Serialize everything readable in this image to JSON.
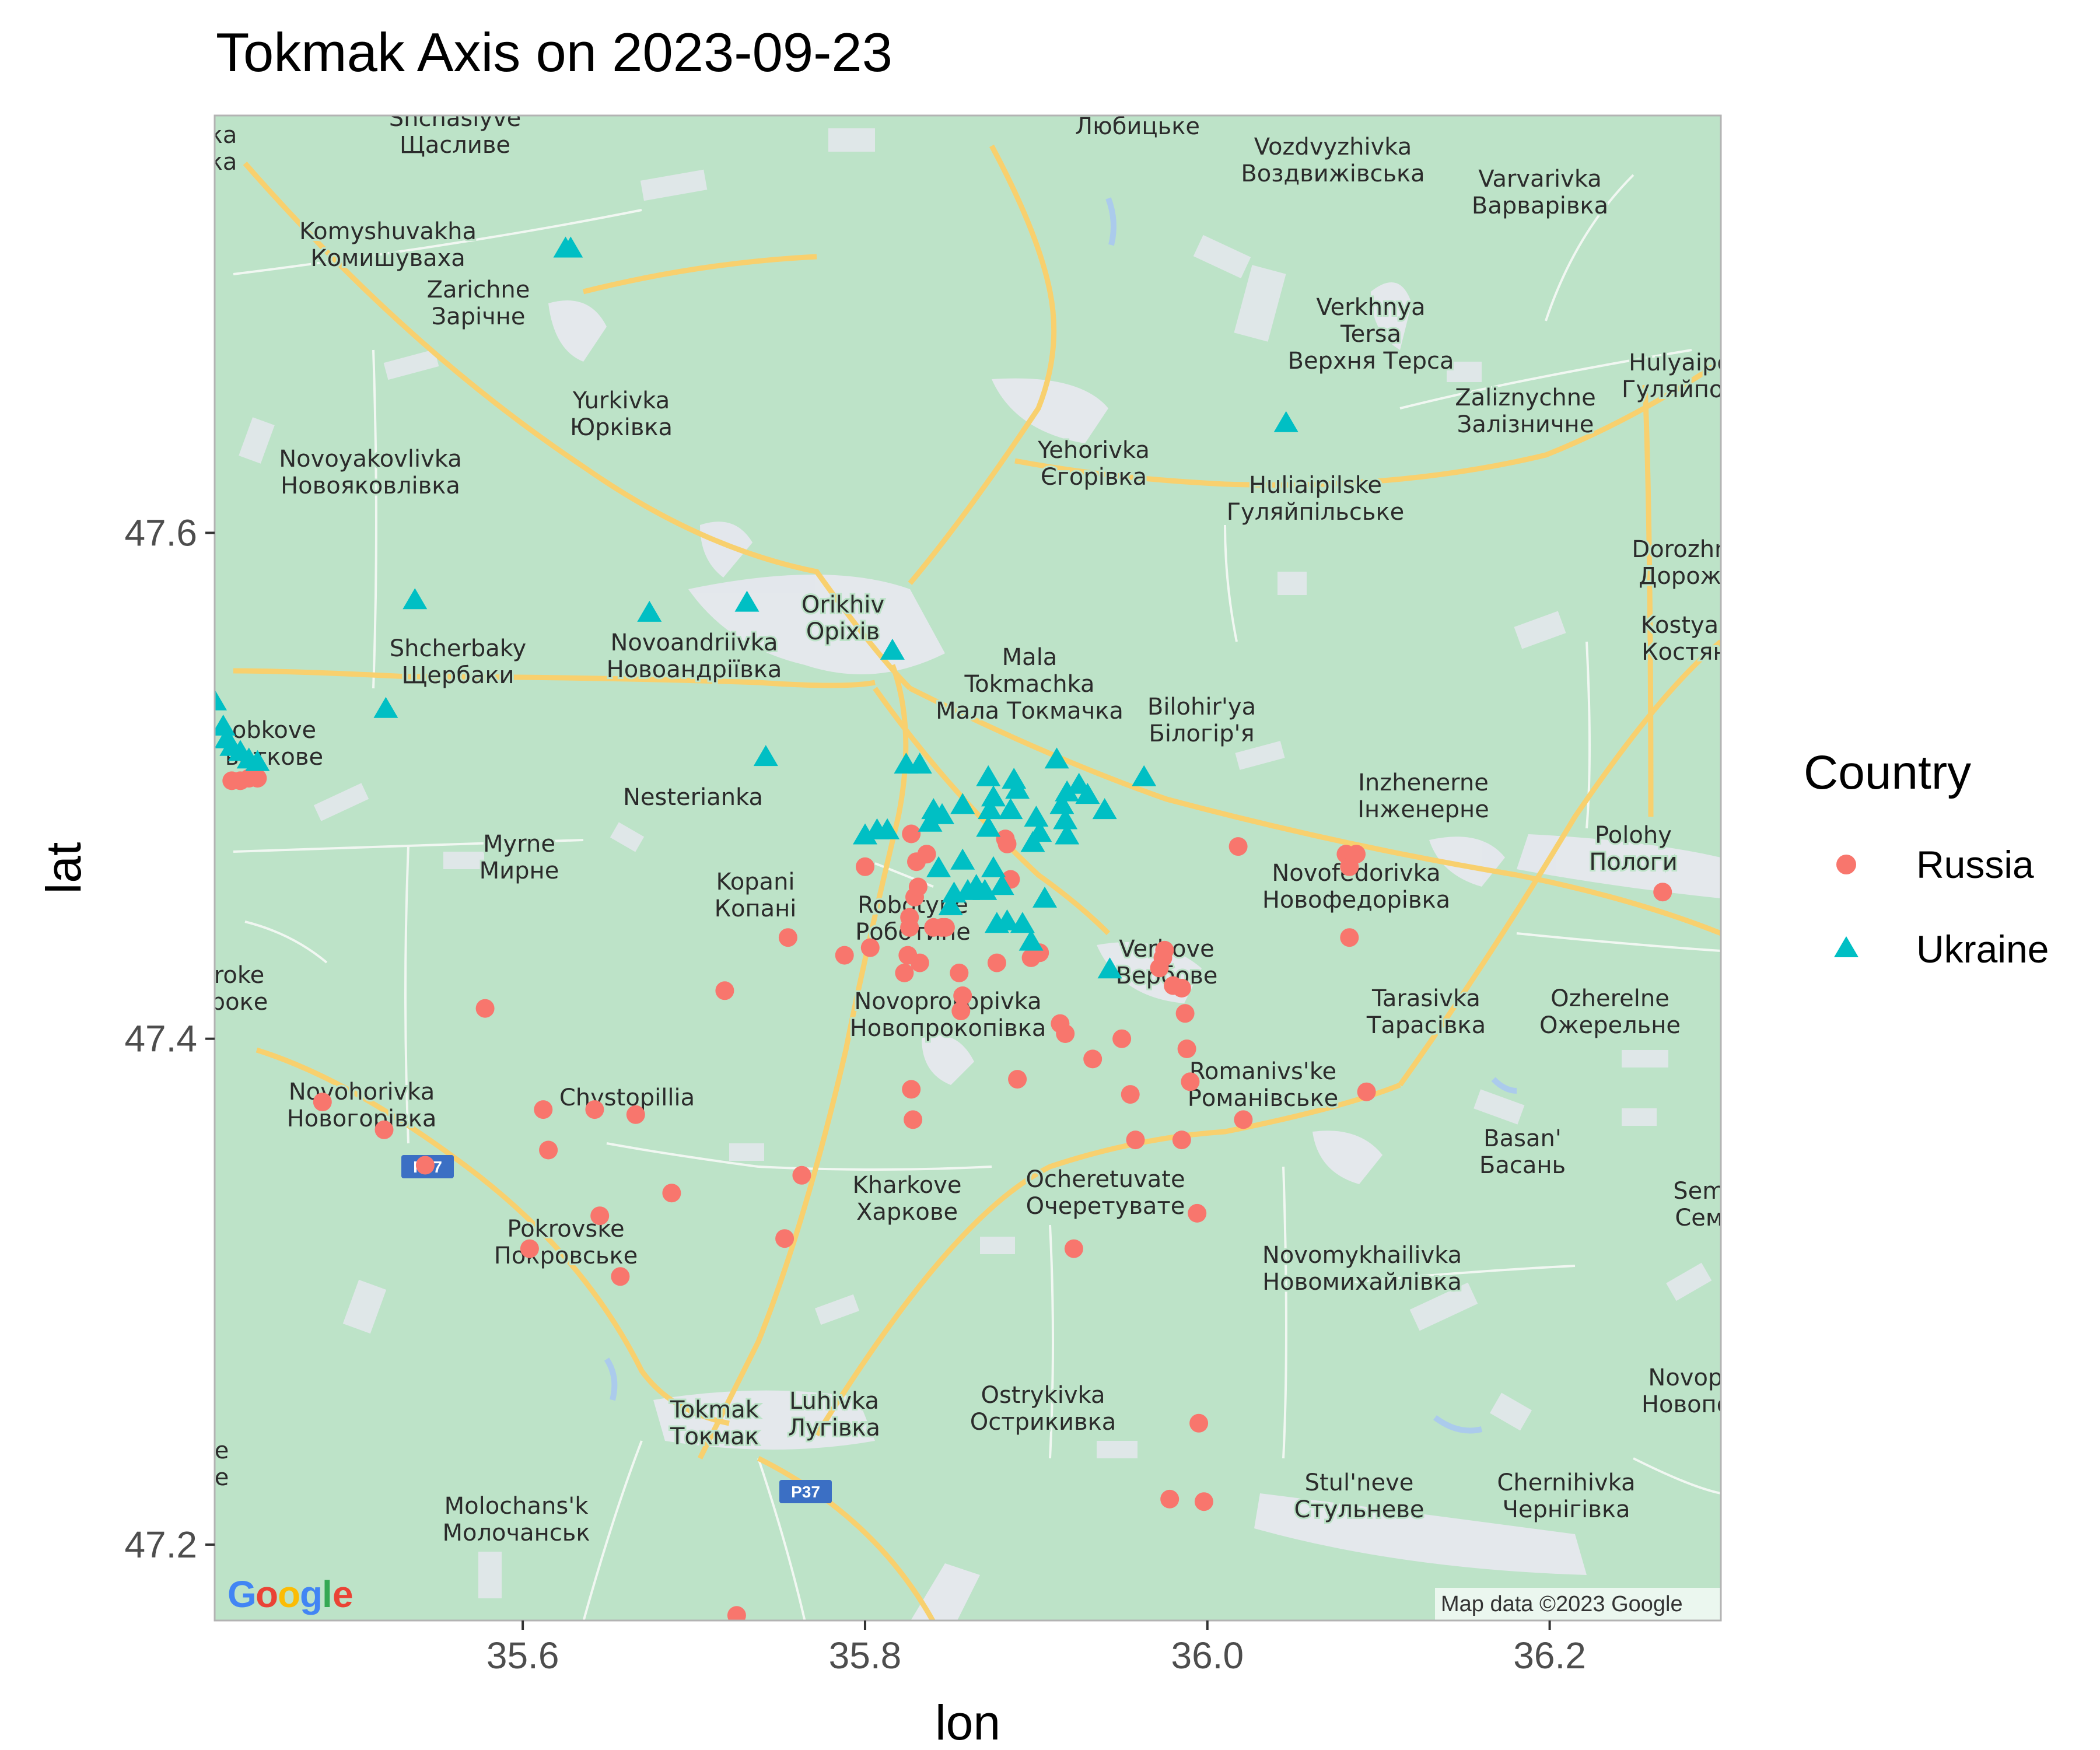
{
  "chart_data": {
    "type": "scatter",
    "title": "Tokmak Axis on 2023-09-23",
    "xlabel": "lon",
    "ylabel": "lat",
    "xlim": [
      35.42,
      36.3
    ],
    "ylim": [
      47.17,
      47.765
    ],
    "x_ticks": [
      35.6,
      35.8,
      36.0,
      36.2
    ],
    "x_tick_labels": [
      "35.6",
      "35.8",
      "36.0",
      "36.2"
    ],
    "y_ticks": [
      47.2,
      47.4,
      47.6
    ],
    "y_tick_labels": [
      "47.2",
      "47.4",
      "47.6"
    ],
    "legend": {
      "title": "Country",
      "placement": "right",
      "entries": [
        {
          "label": "Russia",
          "shape": "circle",
          "color": "#F8766D"
        },
        {
          "label": "Ukraine",
          "shape": "triangle",
          "color": "#00BFC4"
        }
      ]
    },
    "series": [
      {
        "name": "Russia",
        "shape": "circle",
        "color": "#F8766D",
        "points": [
          [
            35.43,
            47.502
          ],
          [
            35.435,
            47.502
          ],
          [
            35.44,
            47.503
          ],
          [
            35.445,
            47.503
          ],
          [
            35.483,
            47.375
          ],
          [
            35.519,
            47.364
          ],
          [
            35.543,
            47.35
          ],
          [
            35.578,
            47.412
          ],
          [
            35.604,
            47.317
          ],
          [
            35.612,
            47.372
          ],
          [
            35.615,
            47.356
          ],
          [
            35.642,
            47.372
          ],
          [
            35.645,
            47.33
          ],
          [
            35.657,
            47.306
          ],
          [
            35.666,
            47.37
          ],
          [
            35.687,
            47.339
          ],
          [
            35.718,
            47.419
          ],
          [
            35.725,
            47.172
          ],
          [
            35.753,
            47.321
          ],
          [
            35.755,
            47.44
          ],
          [
            35.763,
            47.346
          ],
          [
            35.788,
            47.433
          ],
          [
            35.8,
            47.468
          ],
          [
            35.803,
            47.436
          ],
          [
            35.823,
            47.426
          ],
          [
            35.825,
            47.433
          ],
          [
            35.826,
            47.448
          ],
          [
            35.826,
            47.444
          ],
          [
            35.827,
            47.481
          ],
          [
            35.827,
            47.38
          ],
          [
            35.828,
            47.368
          ],
          [
            35.829,
            47.456
          ],
          [
            35.83,
            47.47
          ],
          [
            35.832,
            47.43
          ],
          [
            35.831,
            47.46
          ],
          [
            35.836,
            47.473
          ],
          [
            35.84,
            47.444
          ],
          [
            35.845,
            47.444
          ],
          [
            35.847,
            47.444
          ],
          [
            35.855,
            47.426
          ],
          [
            35.856,
            47.411
          ],
          [
            35.857,
            47.417
          ],
          [
            35.877,
            47.43
          ],
          [
            35.882,
            47.479
          ],
          [
            35.883,
            47.477
          ],
          [
            35.885,
            47.463
          ],
          [
            35.889,
            47.384
          ],
          [
            35.897,
            47.432
          ],
          [
            35.902,
            47.434
          ],
          [
            35.914,
            47.406
          ],
          [
            35.917,
            47.402
          ],
          [
            35.933,
            47.392
          ],
          [
            35.95,
            47.4
          ],
          [
            35.955,
            47.378
          ],
          [
            35.958,
            47.36
          ],
          [
            35.972,
            47.428
          ],
          [
            35.974,
            47.432
          ],
          [
            35.975,
            47.435
          ],
          [
            35.98,
            47.421
          ],
          [
            35.985,
            47.42
          ],
          [
            35.985,
            47.36
          ],
          [
            35.987,
            47.41
          ],
          [
            35.988,
            47.396
          ],
          [
            35.99,
            47.383
          ],
          [
            35.994,
            47.331
          ],
          [
            35.995,
            47.248
          ],
          [
            35.998,
            47.217
          ],
          [
            35.978,
            47.218
          ],
          [
            36.018,
            47.476
          ],
          [
            36.021,
            47.368
          ],
          [
            35.922,
            47.317
          ],
          [
            36.081,
            47.473
          ],
          [
            36.083,
            47.468
          ],
          [
            36.087,
            47.473
          ],
          [
            36.083,
            47.44
          ],
          [
            36.093,
            47.379
          ],
          [
            36.266,
            47.458
          ]
        ]
      },
      {
        "name": "Ukraine",
        "shape": "triangle",
        "color": "#00BFC4",
        "points": [
          [
            35.625,
            47.712
          ],
          [
            35.628,
            47.712
          ],
          [
            35.42,
            47.533
          ],
          [
            35.425,
            47.523
          ],
          [
            35.427,
            47.518
          ],
          [
            35.43,
            47.515
          ],
          [
            35.435,
            47.513
          ],
          [
            35.44,
            47.51
          ],
          [
            35.445,
            47.509
          ],
          [
            35.52,
            47.53
          ],
          [
            35.537,
            47.573
          ],
          [
            35.674,
            47.568
          ],
          [
            35.731,
            47.572
          ],
          [
            35.742,
            47.511
          ],
          [
            35.816,
            47.553
          ],
          [
            35.8,
            47.48
          ],
          [
            35.807,
            47.482
          ],
          [
            35.813,
            47.482
          ],
          [
            35.824,
            47.508
          ],
          [
            35.832,
            47.508
          ],
          [
            35.838,
            47.485
          ],
          [
            35.84,
            47.49
          ],
          [
            35.843,
            47.467
          ],
          [
            35.845,
            47.488
          ],
          [
            35.85,
            47.452
          ],
          [
            35.852,
            47.457
          ],
          [
            35.857,
            47.47
          ],
          [
            35.857,
            47.492
          ],
          [
            35.86,
            47.458
          ],
          [
            35.865,
            47.46
          ],
          [
            35.87,
            47.458
          ],
          [
            35.872,
            47.483
          ],
          [
            35.872,
            47.503
          ],
          [
            35.873,
            47.49
          ],
          [
            35.875,
            47.495
          ],
          [
            35.875,
            47.467
          ],
          [
            35.877,
            47.445
          ],
          [
            35.88,
            47.46
          ],
          [
            35.883,
            47.446
          ],
          [
            35.885,
            47.49
          ],
          [
            35.887,
            47.502
          ],
          [
            35.889,
            47.498
          ],
          [
            35.892,
            47.445
          ],
          [
            35.897,
            47.438
          ],
          [
            35.898,
            47.477
          ],
          [
            35.9,
            47.487
          ],
          [
            35.902,
            47.481
          ],
          [
            35.905,
            47.455
          ],
          [
            35.912,
            47.51
          ],
          [
            35.915,
            47.492
          ],
          [
            35.917,
            47.486
          ],
          [
            35.918,
            47.497
          ],
          [
            35.918,
            47.48
          ],
          [
            35.925,
            47.5
          ],
          [
            35.93,
            47.496
          ],
          [
            35.94,
            47.49
          ],
          [
            35.943,
            47.427
          ],
          [
            35.963,
            47.503
          ],
          [
            36.046,
            47.643
          ]
        ]
      }
    ]
  },
  "map": {
    "road_badges": [
      "P37",
      "P37"
    ],
    "attribution": "Map data ©2023 Google",
    "logo_text": "Google",
    "places": [
      {
        "lat": "Shchaslyve",
        "cyr": "Щасливе"
      },
      {
        "lat": "",
        "cyr": "Любицьке"
      },
      {
        "lat": "Vozdvyzhivka",
        "cyr": "Воздвижівська"
      },
      {
        "lat": "Varvarivka",
        "cyr": "Варварівка"
      },
      {
        "lat": "Komyshuvakha",
        "cyr": "Комишуваха"
      },
      {
        "lat": "Zarichne",
        "cyr": "Зарічне"
      },
      {
        "lat": "Verkhnya Tersa",
        "cyr": "Верхня Терса"
      },
      {
        "lat": "Hulyaipo",
        "cyr": "Гуляйпол"
      },
      {
        "lat": "Yurkivka",
        "cyr": "Юрківка"
      },
      {
        "lat": "Zaliznychne",
        "cyr": "Залізничне"
      },
      {
        "lat": "Novoyakovlivka",
        "cyr": "Новояковлівка"
      },
      {
        "lat": "Yehorivka",
        "cyr": "Єгорівка"
      },
      {
        "lat": "Huliaipilske",
        "cyr": "Гуляйпільське"
      },
      {
        "lat": "Dorozhnya",
        "cyr": "Дорожня"
      },
      {
        "lat": "Orikhiv",
        "cyr": "Оріхів"
      },
      {
        "lat": "Shcherbaky",
        "cyr": "Щербаки"
      },
      {
        "lat": "Novoandriivka",
        "cyr": "Новоандріївка"
      },
      {
        "lat": "Kostyant",
        "cyr": "Костянт"
      },
      {
        "lat": "Mala Tokmachka",
        "cyr": "Мала Токмачка"
      },
      {
        "lat": "Bilohir'ya",
        "cyr": "Білогір'я"
      },
      {
        "lat": "Robotyne",
        "cyr": "Роботине"
      },
      {
        "lat": "obkove",
        "cyr": "ьоткове"
      },
      {
        "lat": "Nesterianka",
        "cyr": ""
      },
      {
        "lat": "Inzhenerne",
        "cyr": "Інженерне"
      },
      {
        "lat": "Myrne",
        "cyr": "Мирне"
      },
      {
        "lat": "Polohy",
        "cyr": "Пологи"
      },
      {
        "lat": "Kopani",
        "cyr": "Копані"
      },
      {
        "lat": "Novofedorivka",
        "cyr": "Новофедорівка"
      },
      {
        "lat": "Verbove",
        "cyr": "Вербове"
      },
      {
        "lat": "Tarasivka",
        "cyr": "Тарасівка"
      },
      {
        "lat": "Ozherelne",
        "cyr": "Ожерельне"
      },
      {
        "lat": "Novoprokopivka",
        "cyr": "Новопрокопівка"
      },
      {
        "lat": "Novohorivka",
        "cyr": "Новогорівка"
      },
      {
        "lat": "Chystopillia",
        "cyr": ""
      },
      {
        "lat": "Romanivs'ke",
        "cyr": "Романівське"
      },
      {
        "lat": "Basan'",
        "cyr": "Басань"
      },
      {
        "lat": "Kharkove",
        "cyr": "Харкове"
      },
      {
        "lat": "Ocheretuvate",
        "cyr": "Очеретувате"
      },
      {
        "lat": "Seme",
        "cyr": "Семе"
      },
      {
        "lat": "Pokrovske",
        "cyr": "Покровське"
      },
      {
        "lat": "Novomykhailivka",
        "cyr": "Новомихайлівка"
      },
      {
        "lat": "Novopolt",
        "cyr": "Новополт"
      },
      {
        "lat": "Tokmak",
        "cyr": "Токмак"
      },
      {
        "lat": "Luhivka",
        "cyr": "Лугівка"
      },
      {
        "lat": "Ostrykivka",
        "cyr": "Острикивка"
      },
      {
        "lat": "Molochans'k",
        "cyr": "Молочанськ"
      },
      {
        "lat": "Stul'neve",
        "cyr": "Стульневе"
      },
      {
        "lat": "Chernihivka",
        "cyr": "Чернігівка"
      },
      {
        "lat": "roke",
        "cyr": "роке"
      },
      {
        "lat": "ка",
        "cyr": "ка"
      },
      {
        "lat": "e",
        "cyr": "e"
      }
    ]
  }
}
